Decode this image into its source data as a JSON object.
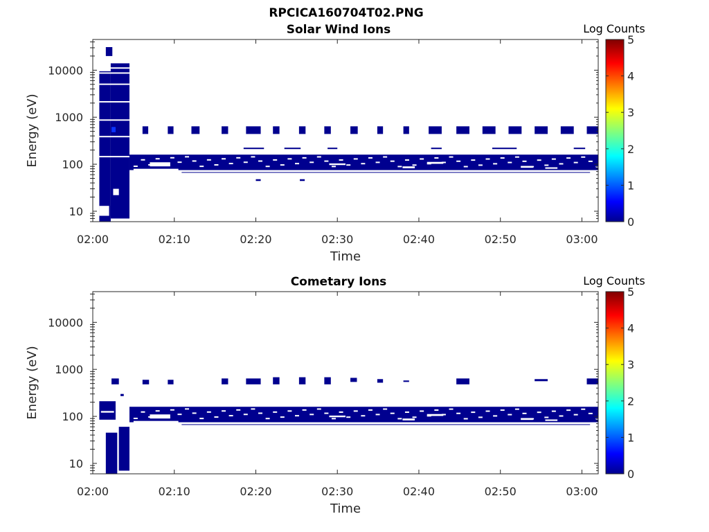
{
  "figure": {
    "title": "RPCICA160704T02.PNG"
  },
  "chart_data": [
    {
      "type": "heatmap",
      "title": "Solar Wind Ions",
      "xlabel": "Time",
      "ylabel": "Energy (eV)",
      "x_ticks": [
        "02:00",
        "02:10",
        "02:20",
        "02:30",
        "02:40",
        "02:50",
        "03:00"
      ],
      "y_ticks": [
        "10",
        "100",
        "1000",
        "10000"
      ],
      "y_scale": "log",
      "ylim": [
        6,
        45000
      ],
      "xlim_minutes": [
        0,
        62
      ],
      "colorbar": {
        "title": "Log Counts",
        "ticks": [
          "0",
          "1",
          "2",
          "3",
          "4",
          "5"
        ],
        "range": [
          0,
          5
        ]
      },
      "colors": {
        "low": "#00008f",
        "mid": "#0a33ff",
        "high": "#800000"
      },
      "cells": [
        {
          "t0": 0.8,
          "t1": 2.2,
          "e0": 6,
          "e1": 9500,
          "v": 0.2
        },
        {
          "t0": 2.2,
          "t1": 4.5,
          "e0": 7,
          "e1": 14000,
          "v": 0.2
        },
        {
          "t0": 1.6,
          "t1": 2.4,
          "e0": 20000,
          "e1": 31000,
          "v": 0.2
        },
        {
          "t0": 2.3,
          "t1": 2.8,
          "e0": 480,
          "e1": 620,
          "v": 1.1
        },
        {
          "t0": 6.1,
          "t1": 6.8,
          "e0": 440,
          "e1": 640,
          "v": 0.2
        },
        {
          "t0": 9.2,
          "t1": 9.9,
          "e0": 440,
          "e1": 640,
          "v": 0.2
        },
        {
          "t0": 12.1,
          "t1": 13.1,
          "e0": 440,
          "e1": 640,
          "v": 0.2
        },
        {
          "t0": 15.8,
          "t1": 16.6,
          "e0": 440,
          "e1": 640,
          "v": 0.2
        },
        {
          "t0": 18.8,
          "t1": 20.6,
          "e0": 440,
          "e1": 640,
          "v": 0.2
        },
        {
          "t0": 22.1,
          "t1": 22.9,
          "e0": 440,
          "e1": 640,
          "v": 0.2
        },
        {
          "t0": 25.3,
          "t1": 26.1,
          "e0": 440,
          "e1": 640,
          "v": 0.2
        },
        {
          "t0": 28.4,
          "t1": 29.2,
          "e0": 440,
          "e1": 640,
          "v": 0.2
        },
        {
          "t0": 31.6,
          "t1": 32.5,
          "e0": 440,
          "e1": 640,
          "v": 0.2
        },
        {
          "t0": 34.9,
          "t1": 35.6,
          "e0": 440,
          "e1": 640,
          "v": 0.2
        },
        {
          "t0": 38.1,
          "t1": 38.8,
          "e0": 440,
          "e1": 640,
          "v": 0.2
        },
        {
          "t0": 41.2,
          "t1": 42.8,
          "e0": 440,
          "e1": 640,
          "v": 0.2
        },
        {
          "t0": 44.6,
          "t1": 46.2,
          "e0": 440,
          "e1": 640,
          "v": 0.2
        },
        {
          "t0": 47.8,
          "t1": 49.4,
          "e0": 440,
          "e1": 640,
          "v": 0.2
        },
        {
          "t0": 51.0,
          "t1": 52.6,
          "e0": 440,
          "e1": 640,
          "v": 0.2
        },
        {
          "t0": 54.2,
          "t1": 55.8,
          "e0": 440,
          "e1": 640,
          "v": 0.2
        },
        {
          "t0": 57.4,
          "t1": 59.0,
          "e0": 440,
          "e1": 640,
          "v": 0.2
        },
        {
          "t0": 60.6,
          "t1": 62.0,
          "e0": 440,
          "e1": 640,
          "v": 0.2
        },
        {
          "t0": 4.5,
          "t1": 62.0,
          "e0": 75,
          "e1": 160,
          "v": 0.2
        },
        {
          "t0": 10.9,
          "t1": 61.0,
          "e0": 66,
          "e1": 68,
          "v": 0.2
        },
        {
          "t0": 18.5,
          "t1": 21.0,
          "e0": 210,
          "e1": 225,
          "v": 0.2
        },
        {
          "t0": 23.5,
          "t1": 25.5,
          "e0": 210,
          "e1": 225,
          "v": 0.2
        },
        {
          "t0": 28.8,
          "t1": 30.0,
          "e0": 210,
          "e1": 225,
          "v": 0.2
        },
        {
          "t0": 41.5,
          "t1": 42.8,
          "e0": 210,
          "e1": 225,
          "v": 0.2
        },
        {
          "t0": 49.0,
          "t1": 52.0,
          "e0": 210,
          "e1": 225,
          "v": 0.2
        },
        {
          "t0": 59.0,
          "t1": 60.4,
          "e0": 210,
          "e1": 225,
          "v": 0.2
        },
        {
          "t0": 20.0,
          "t1": 20.6,
          "e0": 44,
          "e1": 48,
          "v": 0.2
        },
        {
          "t0": 25.4,
          "t1": 26.0,
          "e0": 44,
          "e1": 48,
          "v": 0.2
        }
      ],
      "gaps": [
        {
          "t0": 0.8,
          "t1": 2.0,
          "e0": 8,
          "e1": 13
        },
        {
          "t0": 2.5,
          "t1": 3.2,
          "e0": 22,
          "e1": 30
        },
        {
          "t0": 5.0,
          "t1": 10.5,
          "e0": 70,
          "e1": 80
        },
        {
          "t0": 7.0,
          "t1": 9.5,
          "e0": 90,
          "e1": 110
        },
        {
          "t0": 29.0,
          "t1": 31.0,
          "e0": 96,
          "e1": 104
        },
        {
          "t0": 38.0,
          "t1": 39.5,
          "e0": 82,
          "e1": 90
        },
        {
          "t0": 41.0,
          "t1": 43.0,
          "e0": 102,
          "e1": 112
        },
        {
          "t0": 52.5,
          "t1": 54.0,
          "e0": 84,
          "e1": 92
        },
        {
          "t0": 55.5,
          "t1": 57.0,
          "e0": 80,
          "e1": 86
        }
      ]
    },
    {
      "type": "heatmap",
      "title": "Cometary Ions",
      "xlabel": "Time",
      "ylabel": "Energy (eV)",
      "x_ticks": [
        "02:00",
        "02:10",
        "02:20",
        "02:30",
        "02:40",
        "02:50",
        "03:00"
      ],
      "y_ticks": [
        "10",
        "100",
        "1000",
        "10000"
      ],
      "y_scale": "log",
      "ylim": [
        6,
        45000
      ],
      "xlim_minutes": [
        0,
        62
      ],
      "colorbar": {
        "title": "Log Counts",
        "ticks": [
          "0",
          "1",
          "2",
          "3",
          "4",
          "5"
        ],
        "range": [
          0,
          5
        ]
      },
      "colors": {
        "low": "#00008f",
        "mid": "#0a33ff",
        "high": "#800000"
      },
      "cells": [
        {
          "t0": 0.8,
          "t1": 2.8,
          "e0": 85,
          "e1": 210,
          "v": 0.2
        },
        {
          "t0": 1.6,
          "t1": 3.0,
          "e0": 6,
          "e1": 45,
          "v": 0.2
        },
        {
          "t0": 3.2,
          "t1": 4.5,
          "e0": 7,
          "e1": 60,
          "v": 0.2
        },
        {
          "t0": 3.4,
          "t1": 3.8,
          "e0": 270,
          "e1": 300,
          "v": 0.2
        },
        {
          "t0": 2.3,
          "t1": 3.2,
          "e0": 480,
          "e1": 640,
          "v": 0.2
        },
        {
          "t0": 6.1,
          "t1": 6.9,
          "e0": 480,
          "e1": 600,
          "v": 0.2
        },
        {
          "t0": 9.2,
          "t1": 9.9,
          "e0": 480,
          "e1": 600,
          "v": 0.2
        },
        {
          "t0": 15.8,
          "t1": 16.6,
          "e0": 480,
          "e1": 640,
          "v": 0.2
        },
        {
          "t0": 18.8,
          "t1": 20.6,
          "e0": 480,
          "e1": 640,
          "v": 0.2
        },
        {
          "t0": 22.1,
          "t1": 22.9,
          "e0": 480,
          "e1": 680,
          "v": 0.2
        },
        {
          "t0": 25.3,
          "t1": 26.1,
          "e0": 480,
          "e1": 680,
          "v": 0.2
        },
        {
          "t0": 28.4,
          "t1": 29.2,
          "e0": 480,
          "e1": 680,
          "v": 0.2
        },
        {
          "t0": 31.6,
          "t1": 32.4,
          "e0": 540,
          "e1": 660,
          "v": 0.2
        },
        {
          "t0": 34.9,
          "t1": 35.6,
          "e0": 520,
          "e1": 620,
          "v": 0.2
        },
        {
          "t0": 38.1,
          "t1": 38.8,
          "e0": 540,
          "e1": 580,
          "v": 0.2
        },
        {
          "t0": 44.6,
          "t1": 46.2,
          "e0": 480,
          "e1": 640,
          "v": 0.2
        },
        {
          "t0": 54.2,
          "t1": 55.8,
          "e0": 560,
          "e1": 620,
          "v": 0.2
        },
        {
          "t0": 60.6,
          "t1": 62.0,
          "e0": 480,
          "e1": 640,
          "v": 0.2
        },
        {
          "t0": 4.5,
          "t1": 62.0,
          "e0": 75,
          "e1": 160,
          "v": 0.2
        },
        {
          "t0": 10.9,
          "t1": 61.0,
          "e0": 66,
          "e1": 68,
          "v": 0.2
        }
      ],
      "gaps": [
        {
          "t0": 1.0,
          "t1": 2.6,
          "e0": 120,
          "e1": 130
        },
        {
          "t0": 5.0,
          "t1": 10.5,
          "e0": 70,
          "e1": 80
        },
        {
          "t0": 7.0,
          "t1": 9.5,
          "e0": 90,
          "e1": 110
        },
        {
          "t0": 29.0,
          "t1": 31.0,
          "e0": 96,
          "e1": 104
        },
        {
          "t0": 38.0,
          "t1": 39.5,
          "e0": 82,
          "e1": 90
        },
        {
          "t0": 41.0,
          "t1": 43.0,
          "e0": 102,
          "e1": 112
        },
        {
          "t0": 52.5,
          "t1": 54.0,
          "e0": 84,
          "e1": 92
        },
        {
          "t0": 55.5,
          "t1": 57.0,
          "e0": 80,
          "e1": 86
        }
      ]
    }
  ]
}
